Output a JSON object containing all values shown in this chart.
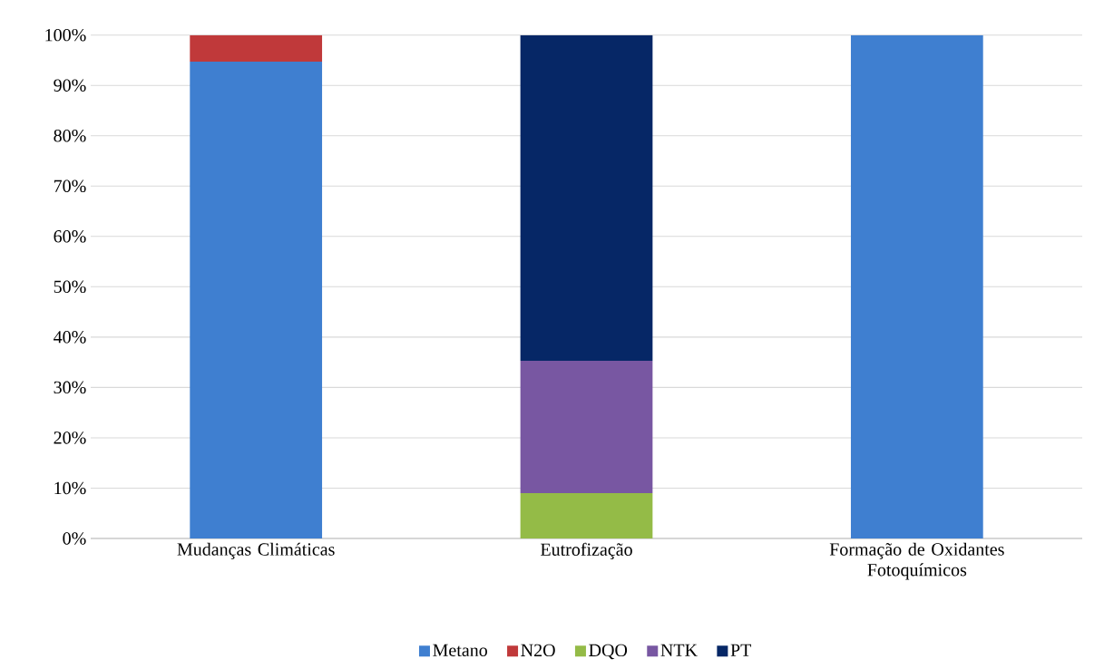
{
  "chart_data": {
    "type": "bar",
    "stacked": true,
    "categories": [
      "Mudanças Climáticas",
      "Eutrofização",
      "Formação de Oxidantes Fotoquímicos"
    ],
    "series": [
      {
        "name": "Metano",
        "color": "#3f7fd0",
        "values": [
          94.7,
          null,
          100
        ]
      },
      {
        "name": "N2O",
        "color": "#c0393a",
        "values": [
          5.3,
          null,
          null
        ]
      },
      {
        "name": "DQO",
        "color": "#94bb47",
        "values": [
          null,
          9.0,
          null
        ]
      },
      {
        "name": "NTK",
        "color": "#7857a2",
        "values": [
          null,
          26.3,
          null
        ]
      },
      {
        "name": "PT",
        "color": "#062766",
        "values": [
          null,
          64.7,
          null
        ]
      }
    ],
    "ylim": [
      0,
      100
    ],
    "yticks": [
      {
        "value": 0,
        "label": "0%"
      },
      {
        "value": 10,
        "label": "10%"
      },
      {
        "value": 20,
        "label": "20%"
      },
      {
        "value": 30,
        "label": "30%"
      },
      {
        "value": 40,
        "label": "40%"
      },
      {
        "value": 50,
        "label": "50%"
      },
      {
        "value": 60,
        "label": "60%"
      },
      {
        "value": 70,
        "label": "70%"
      },
      {
        "value": 80,
        "label": "80%"
      },
      {
        "value": 90,
        "label": "90%"
      },
      {
        "value": 100,
        "label": "100%"
      }
    ],
    "grid": "y",
    "legend": "bottom"
  }
}
